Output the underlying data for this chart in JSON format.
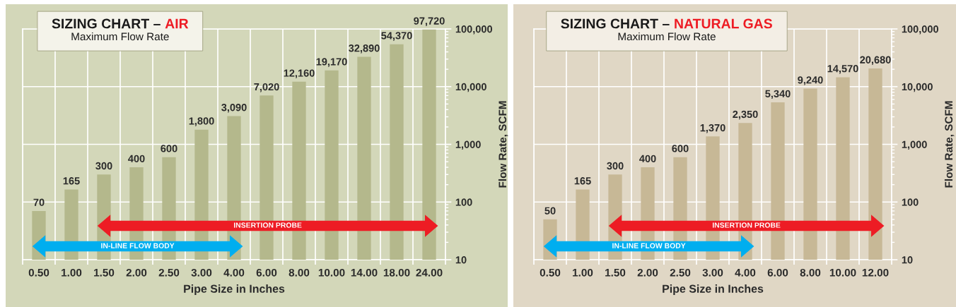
{
  "chart_data": [
    {
      "type": "bar",
      "title": "SIZING CHART – AIR",
      "subtitle": "Maximum Flow Rate",
      "xlabel": "Pipe Size in Inches",
      "ylabel": "Flow Rate, SCFM",
      "categories": [
        "0.50",
        "1.00",
        "1.50",
        "2.00",
        "2.50",
        "3.00",
        "4.00",
        "6.00",
        "8.00",
        "10.00",
        "14.00",
        "18.00",
        "24.00"
      ],
      "values": [
        70,
        165,
        300,
        400,
        600,
        1800,
        3090,
        7020,
        12160,
        19170,
        32890,
        54370,
        97720
      ],
      "value_labels": [
        "70",
        "165",
        "300",
        "400",
        "600",
        "1,800",
        "3,090",
        "7,020",
        "12,160",
        "19,170",
        "32,890",
        "54,370",
        "97,720"
      ],
      "color": "#b4b88c",
      "log": "y",
      "ylim": [
        10,
        100000
      ],
      "yticks": [
        10,
        100,
        {
          "value": 1000,
          "label": "1,000"
        },
        {
          "value": 10000,
          "label": "10,000"
        },
        {
          "value": 100000,
          "label": "100,000"
        }
      ],
      "grid": true,
      "bands": [
        {
          "axis": "x",
          "from": "1.50",
          "to": "24.00",
          "label": "INSERTION PROBE",
          "color": "#ed1c24"
        },
        {
          "axis": "x",
          "from": "0.50",
          "to": "4.00",
          "label": "IN-LINE FLOW BODY",
          "color": "#00aeef"
        }
      ]
    },
    {
      "type": "bar",
      "title": "SIZING CHART – NATURAL GAS",
      "subtitle": "Maximum Flow Rate",
      "xlabel": "Pipe Size in Inches",
      "ylabel": "Flow Rate, SCFM",
      "categories": [
        "0.50",
        "1.00",
        "1.50",
        "2.00",
        "2.50",
        "3.00",
        "4.00",
        "6.00",
        "8.00",
        "10.00",
        "12.00"
      ],
      "values": [
        50,
        165,
        300,
        400,
        600,
        1370,
        2350,
        5340,
        9240,
        14570,
        20680
      ],
      "value_labels": [
        "50",
        "165",
        "300",
        "400",
        "600",
        "1,370",
        "2,350",
        "5,340",
        "9,240",
        "14,570",
        "20,680"
      ],
      "color": "#c7b896",
      "log": "y",
      "ylim": [
        10,
        100000
      ],
      "yticks": [
        10,
        100,
        {
          "value": 1000,
          "label": "1,000"
        },
        {
          "value": 10000,
          "label": "10,000"
        },
        {
          "value": 100000,
          "label": "100,000"
        }
      ],
      "grid": true,
      "bands": [
        {
          "axis": "x",
          "from": "1.50",
          "to": "12.00",
          "label": "INSERTION PROBE",
          "color": "#ed1c24"
        },
        {
          "axis": "x",
          "from": "0.50",
          "to": "4.00",
          "label": "IN-LINE FLOW BODY",
          "color": "#00aeef"
        }
      ]
    }
  ]
}
